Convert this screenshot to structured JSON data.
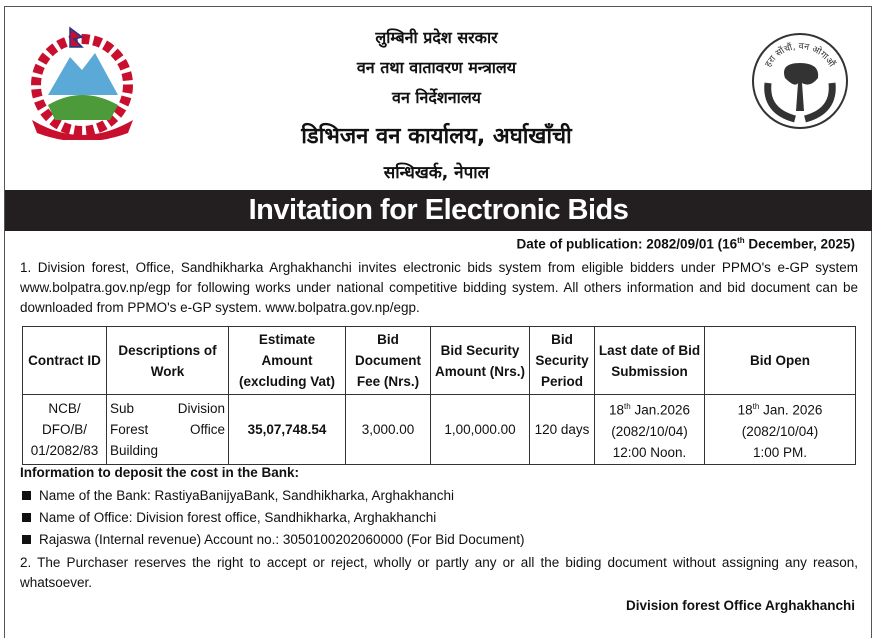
{
  "header": {
    "line1": "लुम्बिनी प्रदेश सरकार",
    "line2": "वन तथा वातावरण मन्त्रालय",
    "line3": "वन निर्देशनालय",
    "line4": "डिभिजन वन कार्यालय, अर्घाखाँची",
    "line5": "सन्धिखर्क, नेपाल",
    "right_logo_text": "हरा सोंचौं, वन ओगाऔं"
  },
  "title": "Invitation for Electronic Bids",
  "publication": {
    "prefix": "Date of publication: 2082/09/01 (16",
    "sup": "th",
    "suffix": " December, 2025)"
  },
  "para1": "1.  Division forest, Office, Sandhikharka Arghakhanchi invites electronic bids system from eligible bidders under PPMO's e-GP system www.bolpatra.gov.np/egp for following works under national competitive bidding system. All others information and bid document can be downloaded from PPMO's e-GP system. www.bolpatra.gov.np/egp.",
  "table": {
    "headers": [
      "Contract ID",
      "Descriptions of Work",
      "Estimate Amount (excluding Vat)",
      "Bid Document Fee (Nrs.)",
      "Bid Security Amount (Nrs.)",
      "Bid Security Period",
      "Last date of Bid Submission",
      "Bid Open"
    ],
    "row": {
      "contract_id": "NCB/ DFO/B/ 01/2082/83",
      "description": "Sub Division Forest Office Building",
      "estimate": "35,07,748.54",
      "doc_fee": "3,000.00",
      "security": "1,00,000.00",
      "period": "120 days",
      "submission": {
        "day": "18",
        "sup": "th",
        "date": " Jan.2026",
        "bs": "(2082/10/04)",
        "time": "12:00 Noon."
      },
      "open": {
        "day": "18",
        "sup": "th",
        "date": " Jan. 2026",
        "bs": "(2082/10/04)",
        "time": "1:00 PM."
      }
    }
  },
  "bank": {
    "heading": "Information to deposit the cost in the Bank:",
    "items": [
      "Name of the Bank: RastiyaBanijyaBank, Sandhikharka, Arghakhanchi",
      "Name of Office: Division forest office, Sandhikharka, Arghakhanchi",
      "Rajaswa (Internal revenue) Account no.: 3050100202060000 (For Bid Document)"
    ]
  },
  "para2": "2.  The Purchaser reserves the right to accept or reject, wholly or partly any or all the biding document without assigning any reason, whatsoever.",
  "signature": "Division forest Office Arghakhanchi"
}
